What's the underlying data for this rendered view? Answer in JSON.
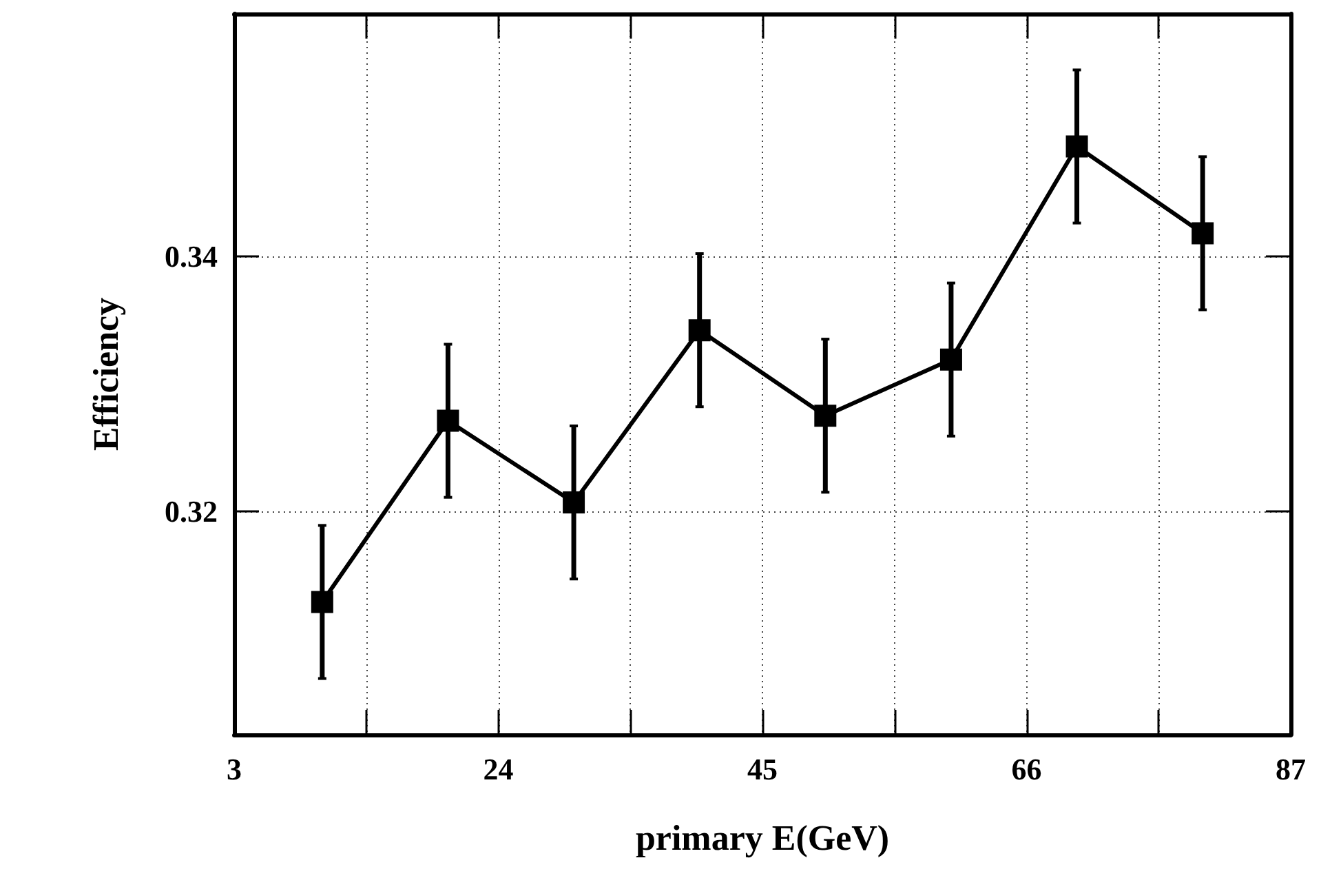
{
  "chart_data": {
    "type": "line",
    "xlabel": "primary E(GeV)",
    "ylabel": "Efficiency",
    "x": [
      10,
      20,
      30,
      40,
      50,
      60,
      70,
      80
    ],
    "series": [
      {
        "color": "#000000",
        "values": [
          0.3129,
          0.3271,
          0.3207,
          0.3342,
          0.3275,
          0.3319,
          0.3486,
          0.3418
        ],
        "errors": [
          0.006,
          0.006,
          0.006,
          0.006,
          0.006,
          0.006,
          0.006,
          0.006
        ]
      }
    ],
    "xlim": [
      3,
      87
    ],
    "xticks": [
      3,
      {
        "value": 13.5,
        "label": null
      },
      24,
      {
        "value": 34.5,
        "label": null
      },
      45,
      {
        "value": 55.5,
        "label": null
      },
      66,
      {
        "value": 76.5,
        "label": null
      },
      87
    ],
    "ylim": [
      0.3025,
      0.359
    ],
    "yticks": [
      0.32,
      0.34
    ],
    "grid": true,
    "marker": "square",
    "line_style": "solid"
  }
}
